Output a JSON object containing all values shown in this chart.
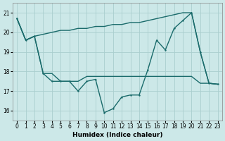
{
  "xlabel": "Humidex (Indice chaleur)",
  "x": [
    0,
    1,
    2,
    3,
    4,
    5,
    6,
    7,
    8,
    9,
    10,
    11,
    12,
    13,
    14,
    15,
    16,
    17,
    18,
    19,
    20,
    21,
    22,
    23
  ],
  "line_top": [
    20.7,
    19.6,
    19.8,
    19.9,
    20.0,
    20.1,
    20.1,
    20.2,
    20.2,
    20.3,
    20.3,
    20.4,
    20.4,
    20.5,
    20.5,
    20.6,
    20.7,
    20.8,
    20.9,
    21.0,
    21.0,
    19.0,
    17.4,
    17.35
  ],
  "line_mid": [
    20.7,
    19.6,
    19.8,
    17.9,
    17.9,
    17.5,
    17.5,
    17.5,
    17.75,
    17.75,
    17.75,
    17.75,
    17.75,
    17.75,
    17.75,
    17.75,
    17.75,
    17.75,
    17.75,
    17.75,
    17.75,
    17.4,
    17.4,
    17.35
  ],
  "line_zigzag": [
    20.7,
    19.6,
    19.8,
    17.9,
    17.5,
    17.5,
    17.5,
    17.0,
    17.5,
    17.6,
    15.9,
    16.1,
    16.7,
    16.8,
    16.8,
    18.1,
    19.6,
    19.1,
    20.2,
    20.6,
    21.0,
    19.0,
    17.4,
    17.35
  ],
  "bg_color": "#cce8e8",
  "line_color": "#1a6b6b",
  "grid_color": "#aacece",
  "ylim": [
    15.5,
    21.5
  ],
  "xlim": [
    -0.5,
    23.5
  ],
  "yticks": [
    16,
    17,
    18,
    19,
    20,
    21
  ],
  "xticks": [
    0,
    1,
    2,
    3,
    4,
    5,
    6,
    7,
    8,
    9,
    10,
    11,
    12,
    13,
    14,
    15,
    16,
    17,
    18,
    19,
    20,
    21,
    22,
    23
  ]
}
